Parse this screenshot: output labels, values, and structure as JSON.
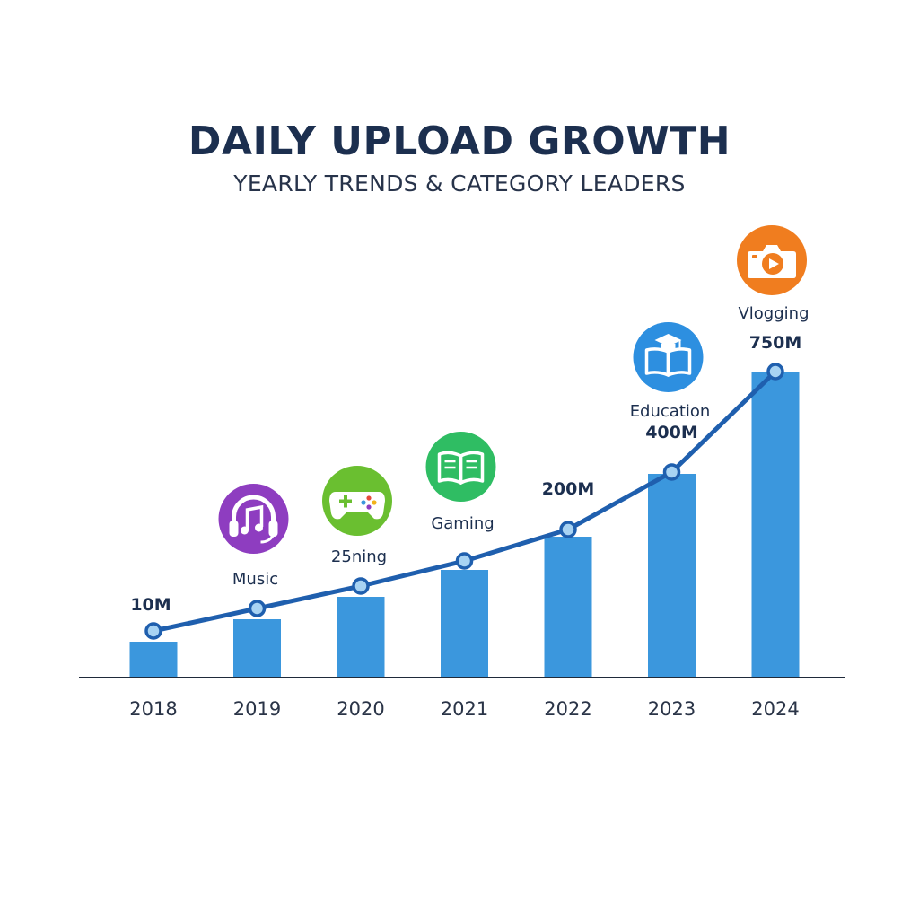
{
  "chart_data": {
    "type": "bar",
    "title": "DAILY UPLOAD GROWTH",
    "subtitle": "YEARLY TRENDS & CATEGORY LEADERS",
    "xlabel": "",
    "ylabel": "",
    "categories": [
      "2018",
      "2019",
      "2020",
      "2021",
      "2022",
      "2023",
      "2024"
    ],
    "values": [
      40,
      65,
      90,
      120,
      157,
      227,
      340
    ],
    "line_values": [
      52,
      77,
      102,
      130,
      165,
      229,
      341
    ],
    "ylim": [
      0,
      360
    ],
    "value_labels": [
      "10M",
      "",
      "",
      "",
      "200M",
      "400M",
      "750M"
    ],
    "category_labels": [
      "",
      "Music",
      "25ning",
      "Gaming",
      "",
      "Education",
      "Vlogging"
    ],
    "category_icons": [
      "",
      "headphones-music-icon",
      "gamepad-icon",
      "open-book-icon",
      "",
      "graduation-book-icon",
      "camera-play-icon"
    ],
    "icon_colors": [
      "",
      "#8e3dc0",
      "#6abf30",
      "#2fbd63",
      "",
      "#2d8fe0",
      "#f07d1f"
    ],
    "bar_color": "#3b97dd",
    "line_color": "#1f5fae",
    "axis_color": "#1f2a3a",
    "grid": false
  }
}
